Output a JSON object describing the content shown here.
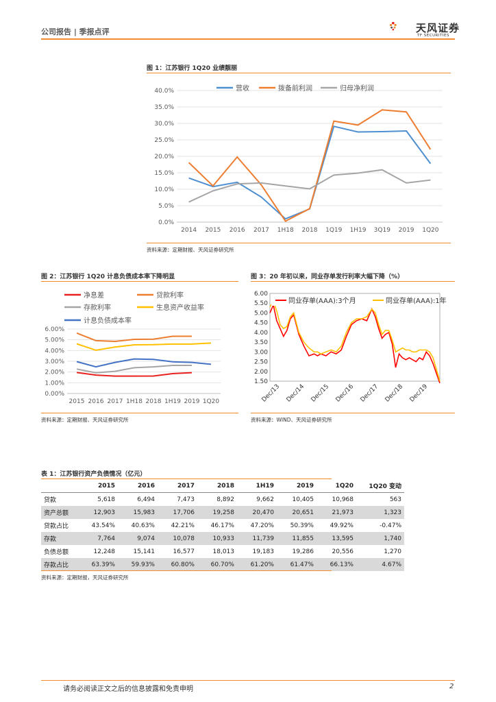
{
  "header": {
    "left": "公司报告 | 季报点评",
    "logo_cn": "天风证券",
    "logo_en": "TF SECURITIES"
  },
  "fig1": {
    "title": "图 1：江苏银行 1Q20 业绩靓丽",
    "source": "资料来源：定期财报、天风证券研究所",
    "chart_data": {
      "type": "line",
      "categories": [
        "2014",
        "2015",
        "2016",
        "2017",
        "1H18",
        "2018",
        "1Q19",
        "1H19",
        "3Q19",
        "2019",
        "1Q20"
      ],
      "yticks": [
        "0.0%",
        "5.0%",
        "10.0%",
        "15.0%",
        "20.0%",
        "25.0%",
        "30.0%",
        "35.0%",
        "40.0%"
      ],
      "ylim": [
        0,
        40
      ],
      "legend_position": "top",
      "series": [
        {
          "name": "营收",
          "color": "#4e8fd0",
          "values": [
            13.4,
            10.8,
            12.1,
            7.6,
            1.0,
            4.0,
            29.1,
            27.4,
            27.5,
            27.7,
            17.8
          ]
        },
        {
          "name": "拨备前利润",
          "color": "#ed7d31",
          "values": [
            18.1,
            11.0,
            19.8,
            11.3,
            0.3,
            4.1,
            30.7,
            29.5,
            34.1,
            33.5,
            22.1
          ]
        },
        {
          "name": "归母净利润",
          "color": "#a5a5a5",
          "values": [
            6.1,
            9.5,
            11.6,
            11.9,
            11.0,
            10.1,
            14.3,
            14.9,
            15.9,
            11.9,
            12.8
          ]
        }
      ]
    }
  },
  "fig2": {
    "title": "图 2：江苏银行 1Q20 计息负债成本率下降明显",
    "source": "资料来源：定期财报、天风证券研究所",
    "chart_data": {
      "type": "line",
      "categories": [
        "2015",
        "2016",
        "2017",
        "1H18",
        "2018",
        "1H19",
        "2019",
        "1Q20"
      ],
      "yticks": [
        "0.00%",
        "1.00%",
        "2.00%",
        "3.00%",
        "4.00%",
        "5.00%",
        "6.00%"
      ],
      "ylim": [
        0,
        6
      ],
      "legend_position": "top",
      "series": [
        {
          "name": "净息差",
          "color": "#e8211f",
          "values": [
            1.95,
            1.72,
            1.62,
            1.62,
            1.63,
            1.85,
            1.94,
            null
          ]
        },
        {
          "name": "贷款利率",
          "color": "#ed7d31",
          "values": [
            5.63,
            4.92,
            4.85,
            5.04,
            5.06,
            5.33,
            5.33,
            null
          ]
        },
        {
          "name": "存款利率",
          "color": "#a5a5a5",
          "values": [
            2.28,
            1.93,
            2.07,
            2.4,
            2.48,
            2.62,
            2.62,
            null
          ]
        },
        {
          "name": "生息资产收益率",
          "color": "#ffc000",
          "values": [
            4.63,
            4.03,
            4.33,
            4.53,
            4.55,
            4.6,
            4.6,
            4.7
          ]
        },
        {
          "name": "计息负债成本率",
          "color": "#4472c4",
          "values": [
            2.97,
            2.48,
            2.9,
            3.22,
            3.17,
            2.95,
            2.9,
            2.72
          ]
        }
      ]
    }
  },
  "fig3": {
    "title": "图 3：20 年初以来，同业存单发行利率大幅下降（%）",
    "source": "资料来源：WIND、天风证券研究所",
    "chart_data": {
      "type": "line",
      "xticks": [
        "Dec/13",
        "Dec/14",
        "Dec/15",
        "Dec/16",
        "Dec/17",
        "Dec/18",
        "Dec/19"
      ],
      "yticks": [
        "1.50",
        "2.00",
        "2.50",
        "3.00",
        "3.50",
        "4.00",
        "4.50",
        "5.00",
        "5.50",
        "6.00"
      ],
      "ylim": [
        1.5,
        6.0
      ],
      "legend_position": "top",
      "series": [
        {
          "name": "同业存单(AAA):3个月",
          "color": "#ff0000",
          "x": [
            0,
            2,
            4,
            6,
            8,
            10,
            12,
            14,
            17,
            20,
            23,
            26,
            28,
            30,
            33,
            36,
            39,
            42,
            45,
            48,
            51,
            54,
            57,
            60,
            62,
            64,
            66,
            68,
            70,
            72,
            74,
            76,
            78,
            80,
            82,
            84,
            86,
            88,
            90,
            92,
            94,
            96,
            98,
            100
          ],
          "values": [
            5.0,
            5.4,
            4.6,
            4.2,
            3.8,
            4.1,
            4.7,
            4.9,
            3.9,
            3.3,
            2.8,
            2.9,
            2.8,
            2.9,
            2.8,
            3.0,
            2.9,
            3.1,
            3.8,
            4.4,
            4.6,
            4.7,
            4.6,
            5.2,
            4.8,
            4.2,
            3.7,
            3.9,
            4.0,
            3.4,
            2.2,
            2.9,
            2.7,
            2.6,
            2.7,
            2.6,
            2.5,
            2.7,
            2.6,
            3.0,
            2.8,
            2.4,
            1.9,
            1.4
          ]
        },
        {
          "name": "同业存单(AAA):1年",
          "color": "#ffc000",
          "x": [
            0,
            2,
            4,
            6,
            8,
            10,
            12,
            14,
            17,
            20,
            23,
            26,
            28,
            30,
            33,
            36,
            39,
            42,
            45,
            48,
            51,
            54,
            57,
            60,
            62,
            64,
            66,
            68,
            70,
            72,
            74,
            76,
            78,
            80,
            82,
            84,
            86,
            88,
            90,
            92,
            94,
            96,
            98,
            100
          ],
          "values": [
            5.3,
            5.6,
            5.1,
            4.4,
            4.2,
            4.3,
            4.8,
            5.0,
            4.0,
            3.5,
            3.2,
            3.0,
            3.0,
            2.9,
            3.0,
            3.1,
            3.0,
            3.3,
            4.0,
            4.5,
            4.7,
            4.7,
            4.8,
            5.2,
            5.0,
            4.4,
            3.9,
            4.1,
            4.1,
            3.6,
            3.0,
            3.1,
            3.2,
            3.1,
            3.1,
            3.0,
            3.0,
            3.1,
            3.1,
            3.1,
            3.0,
            2.7,
            2.1,
            1.5
          ]
        }
      ]
    }
  },
  "table1": {
    "title": "表 1：江苏银行资产负债情况（亿元）",
    "source": "资料来源：定期财报，天风证券研究所",
    "headers": [
      "",
      "2015",
      "2016",
      "2017",
      "2018",
      "1H19",
      "2019",
      "1Q20",
      "1Q20 变动"
    ],
    "rows": [
      [
        "贷款",
        "5,618",
        "6,494",
        "7,473",
        "8,892",
        "9,662",
        "10,405",
        "10,968",
        "563"
      ],
      [
        "资产总额",
        "12,903",
        "15,983",
        "17,706",
        "19,258",
        "20,470",
        "20,651",
        "21,973",
        "1,323"
      ],
      [
        "贷款占比",
        "43.54%",
        "40.63%",
        "42.21%",
        "46.17%",
        "47.20%",
        "50.39%",
        "49.92%",
        "-0.47%"
      ],
      [
        "存款",
        "7,764",
        "9,074",
        "10,078",
        "10,933",
        "11,739",
        "11,855",
        "13,595",
        "1,740"
      ],
      [
        "负债总额",
        "12,248",
        "15,141",
        "16,577",
        "18,013",
        "19,183",
        "19,286",
        "20,556",
        "1,270"
      ],
      [
        "存款占比",
        "63.39%",
        "59.93%",
        "60.80%",
        "60.70%",
        "61.20%",
        "61.47%",
        "66.13%",
        "4.67%"
      ]
    ]
  },
  "footer": {
    "disclaimer": "请务必阅读正文之后的信息披露和免责申明",
    "page": "2"
  }
}
